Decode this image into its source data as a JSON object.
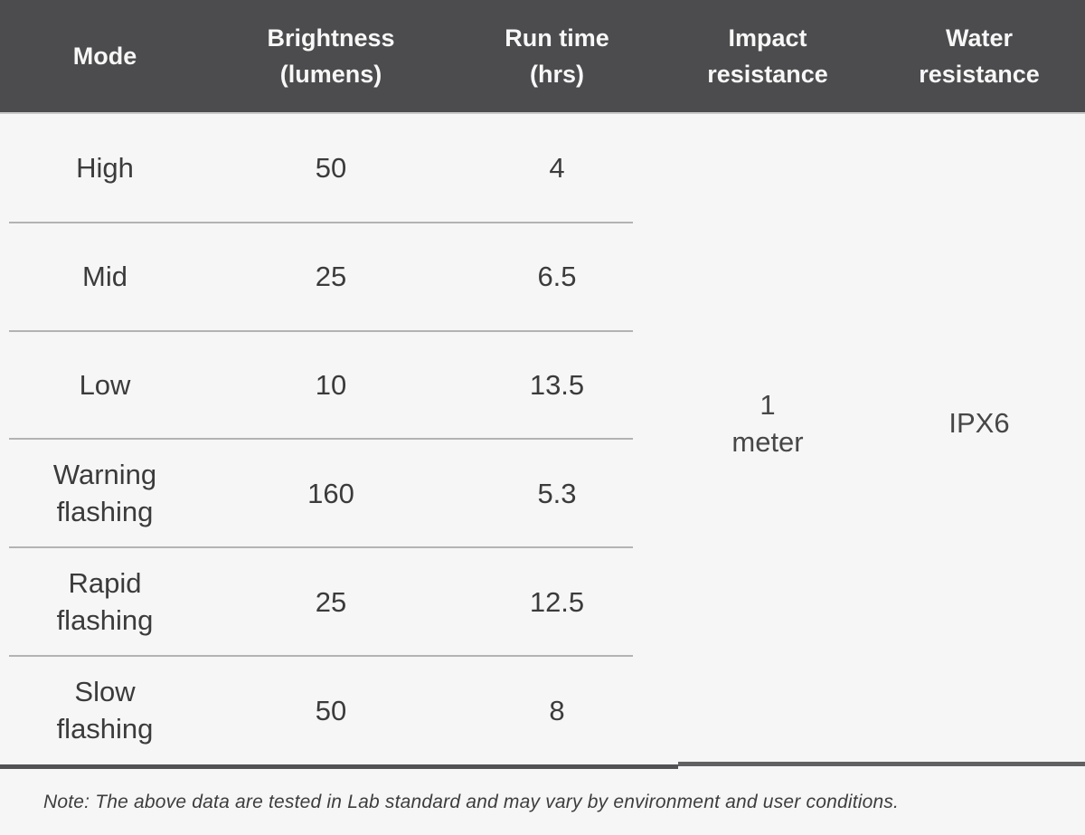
{
  "table": {
    "headers": [
      "Mode",
      "Brightness\n(lumens)",
      "Run time\n(hrs)",
      "Impact\nresistance",
      "Water\nresistance"
    ],
    "rows": [
      {
        "mode": "High",
        "brightness": "50",
        "runtime": "4"
      },
      {
        "mode": "Mid",
        "brightness": "25",
        "runtime": "6.5"
      },
      {
        "mode": "Low",
        "brightness": "10",
        "runtime": "13.5"
      },
      {
        "mode": "Warning\nflashing",
        "brightness": "160",
        "runtime": "5.3"
      },
      {
        "mode": "Rapid\nflashing",
        "brightness": "25",
        "runtime": "12.5"
      },
      {
        "mode": "Slow\nflashing",
        "brightness": "50",
        "runtime": "8"
      }
    ],
    "merged": {
      "impact": "1\nmeter",
      "water": "IPX6"
    }
  },
  "note": "Note: The above data are tested in Lab standard and may vary by environment and user conditions.",
  "colors": {
    "header_bg": "#4c4c4e",
    "header_text": "#f7f7f7",
    "body_bg": "#f5f6f5",
    "body_text": "#3b3b3b",
    "divider": "#b3b3b5",
    "bottom_border": "#525254"
  },
  "chart_data": {
    "type": "table",
    "title": "",
    "columns": [
      "Mode",
      "Brightness (lumens)",
      "Run time (hrs)",
      "Impact resistance",
      "Water resistance"
    ],
    "rows": [
      [
        "High",
        50,
        4,
        "1 meter",
        "IPX6"
      ],
      [
        "Mid",
        25,
        6.5,
        "1 meter",
        "IPX6"
      ],
      [
        "Low",
        10,
        13.5,
        "1 meter",
        "IPX6"
      ],
      [
        "Warning flashing",
        160,
        5.3,
        "1 meter",
        "IPX6"
      ],
      [
        "Rapid flashing",
        25,
        12.5,
        "1 meter",
        "IPX6"
      ],
      [
        "Slow flashing",
        50,
        8,
        "1 meter",
        "IPX6"
      ]
    ],
    "merged_cells": [
      {
        "column": "Impact resistance",
        "value": "1 meter",
        "spans_all_rows": true
      },
      {
        "column": "Water resistance",
        "value": "IPX6",
        "spans_all_rows": true
      }
    ],
    "note": "Note: The above data are tested in Lab standard and may vary by environment and user conditions."
  }
}
